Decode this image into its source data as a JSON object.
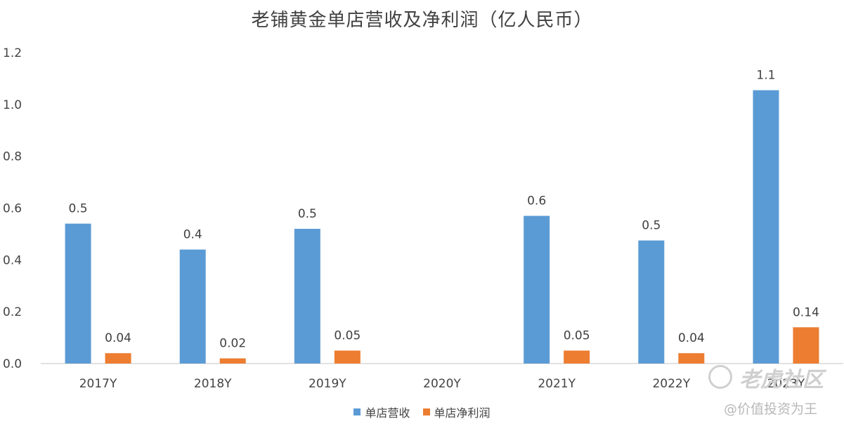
{
  "chart_data": {
    "type": "bar",
    "title": "老铺黄金单店营收及净利润（亿人民币）",
    "categories": [
      "2017Y",
      "2018Y",
      "2019Y",
      "2020Y",
      "2021Y",
      "2022Y",
      "2023Y"
    ],
    "series": [
      {
        "name": "单店营收",
        "color": "#5b9bd5",
        "values": [
          0.54,
          0.44,
          0.52,
          null,
          0.57,
          0.475,
          1.055
        ],
        "labels": [
          "0.5",
          "0.4",
          "0.5",
          "",
          "0.6",
          "0.5",
          "1.1"
        ]
      },
      {
        "name": "单店净利润",
        "color": "#ed7d31",
        "values": [
          0.04,
          0.02,
          0.05,
          null,
          0.05,
          0.04,
          0.14
        ],
        "labels": [
          "0.04",
          "0.02",
          "0.05",
          "",
          "0.05",
          "0.04",
          "0.14"
        ]
      }
    ],
    "yticks": [
      "0.0",
      "0.2",
      "0.4",
      "0.6",
      "0.8",
      "1.0",
      "1.2"
    ],
    "ylim": [
      0,
      1.2
    ],
    "grid": false,
    "legend": "bottom"
  },
  "watermark": {
    "brand": "老虎社区",
    "handle": "@价值投资为王"
  }
}
